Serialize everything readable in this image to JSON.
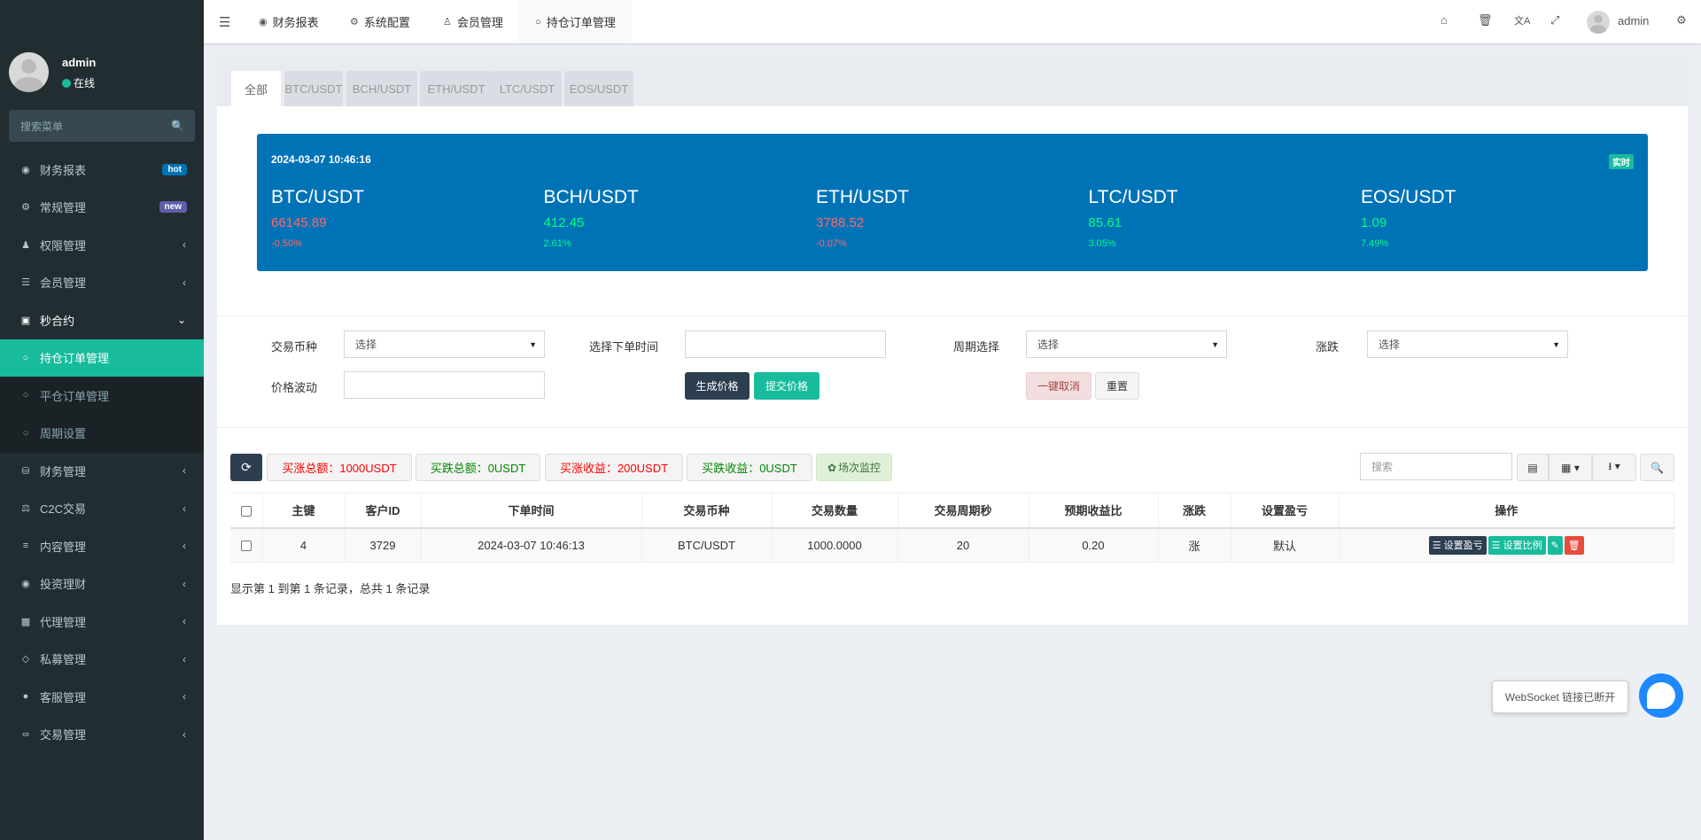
{
  "colors": {
    "sidebar": "#222d32",
    "accent": "#18bc9c",
    "primary": "#0073b7",
    "danger": "#e74c3c",
    "dark": "#2c3e50",
    "up": "#ff6666",
    "down": "#00ff80"
  },
  "sidebar": {
    "user": {
      "name": "admin",
      "status": "在线"
    },
    "search_placeholder": "搜索菜单",
    "items": [
      {
        "label": "财务报表",
        "icon": "dashboard-icon",
        "badge": "hot"
      },
      {
        "label": "常规管理",
        "icon": "cogs-icon",
        "badge": "new"
      },
      {
        "label": "权限管理",
        "icon": "users-icon"
      },
      {
        "label": "会员管理",
        "icon": "list-icon"
      },
      {
        "label": "秒合约",
        "icon": "calendar-icon",
        "expanded": true
      },
      {
        "label": "持仓订单管理",
        "icon": "circle-icon",
        "active": true
      },
      {
        "label": "平仓订单管理",
        "icon": "circle-icon"
      },
      {
        "label": "周期设置",
        "icon": "circle-icon"
      },
      {
        "label": "财务管理",
        "icon": "database-icon"
      },
      {
        "label": "C2C交易",
        "icon": "balance-scale-icon"
      },
      {
        "label": "内容管理",
        "icon": "align-left-icon"
      },
      {
        "label": "投资理财",
        "icon": "disc-icon"
      },
      {
        "label": "代理管理",
        "icon": "briefcase-icon"
      },
      {
        "label": "私募管理",
        "icon": "diamond-icon"
      },
      {
        "label": "客服管理",
        "icon": "comment-icon"
      },
      {
        "label": "交易管理",
        "icon": "handshake-icon"
      }
    ]
  },
  "header": {
    "tabs": [
      {
        "label": "财务报表",
        "icon": "dashboard-icon"
      },
      {
        "label": "系统配置",
        "icon": "cog-icon"
      },
      {
        "label": "会员管理",
        "icon": "user-icon"
      },
      {
        "label": "持仓订单管理",
        "icon": "circle-icon",
        "active": true
      }
    ],
    "user": "admin"
  },
  "coin_tabs": [
    "全部",
    "BTC/USDT",
    "BCH/USDT",
    "ETH/USDT",
    "LTC/USDT",
    "EOS/USDT"
  ],
  "ticker": {
    "time": "2024-03-07 10:46:16",
    "badge": "实时",
    "coins": [
      {
        "name": "BTC/USDT",
        "price": "66145.89",
        "change": "-0.50%",
        "dir": "down"
      },
      {
        "name": "BCH/USDT",
        "price": "412.45",
        "change": "2.61%",
        "dir": "up"
      },
      {
        "name": "ETH/USDT",
        "price": "3788.52",
        "change": "-0.07%",
        "dir": "down"
      },
      {
        "name": "LTC/USDT",
        "price": "85.61",
        "change": "3.05%",
        "dir": "up"
      },
      {
        "name": "EOS/USDT",
        "price": "1.09",
        "change": "7.49%",
        "dir": "up"
      }
    ]
  },
  "form": {
    "coin_label": "交易币种",
    "coin_value": "选择",
    "time_label": "选择下单时间",
    "time_value": "",
    "period_label": "周期选择",
    "period_value": "选择",
    "updown_label": "涨跌",
    "updown_value": "选择",
    "volatility_label": "价格波动",
    "volatility_value": "",
    "generate": "生成价格",
    "submit": "提交价格",
    "cancel_all": "一键取消",
    "reset": "重置"
  },
  "toolbar": {
    "buy_up_total": "买涨总额：1000USDT",
    "buy_down_total": "买跌总额：0USDT",
    "buy_up_profit": "买涨收益：200USDT",
    "buy_down_profit": "买跌收益：0USDT",
    "monitor": "场次监控",
    "search_placeholder": "搜索"
  },
  "table": {
    "columns": [
      "主键",
      "客户ID",
      "下单时间",
      "交易币种",
      "交易数量",
      "交易周期秒",
      "预期收益比",
      "涨跌",
      "设置盈亏",
      "操作"
    ],
    "rows": [
      [
        "4",
        "3729",
        "2024-03-07 10:46:13",
        "BTC/USDT",
        "1000.0000",
        "20",
        "0.20",
        "涨",
        "默认"
      ]
    ],
    "actions": {
      "set_pl": "设置盈亏",
      "set_ratio": "设置比例"
    },
    "footer": "显示第 1 到第 1 条记录，总共 1 条记录"
  },
  "websocket": {
    "message": "WebSocket 链接已断开"
  }
}
